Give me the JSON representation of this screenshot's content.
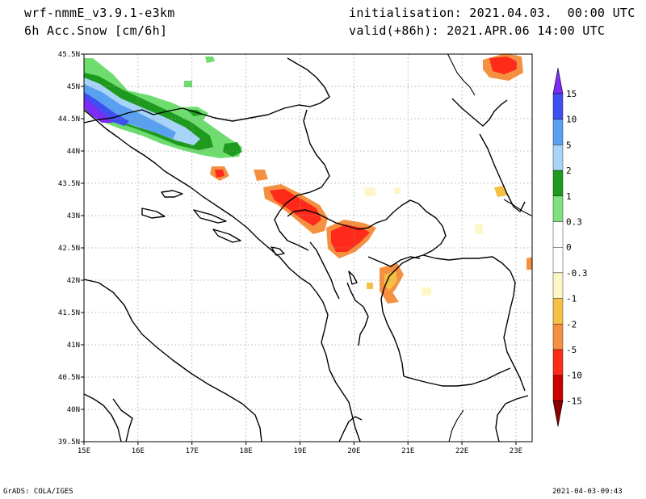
{
  "header": {
    "model": "wrf-nmmE_v3.9.1-e3km",
    "variable": "6h Acc.Snow [cm/6h]",
    "initialisation": "initialisation: 2021.04.03.  00:00 UTC",
    "valid": "valid(+86h): 2021.APR.06 14:00 UTC"
  },
  "footer": {
    "credit": "GrADS: COLA/IGES",
    "timestamp": "2021-04-03-09:43"
  },
  "map": {
    "lon_ticks": [
      "15E",
      "16E",
      "17E",
      "18E",
      "19E",
      "20E",
      "21E",
      "22E",
      "23E"
    ],
    "lat_ticks": [
      "45.5N",
      "45N",
      "44.5N",
      "44N",
      "43.5N",
      "43N",
      "42.5N",
      "42N",
      "41.5N",
      "41N",
      "40.5N",
      "40N",
      "39.5N"
    ],
    "lon_range": [
      15,
      23.3
    ],
    "lat_range": [
      39.5,
      45.5
    ],
    "grid": true
  },
  "colorbar": {
    "levels": [
      "15",
      "10",
      "5",
      "2",
      "1",
      "0.3",
      "0",
      "-0.3",
      "-1",
      "-2",
      "-5",
      "-10",
      "-15"
    ],
    "colors": [
      "#7b2cf5",
      "#3f4ff0",
      "#5aa0f0",
      "#a8d4f8",
      "#1e9a1e",
      "#7ee07e",
      "#ffffff",
      "#ffffff",
      "#fdf7c8",
      "#f5c044",
      "#f59040",
      "#ff2a1a",
      "#c80000",
      "#8b0000"
    ]
  }
}
